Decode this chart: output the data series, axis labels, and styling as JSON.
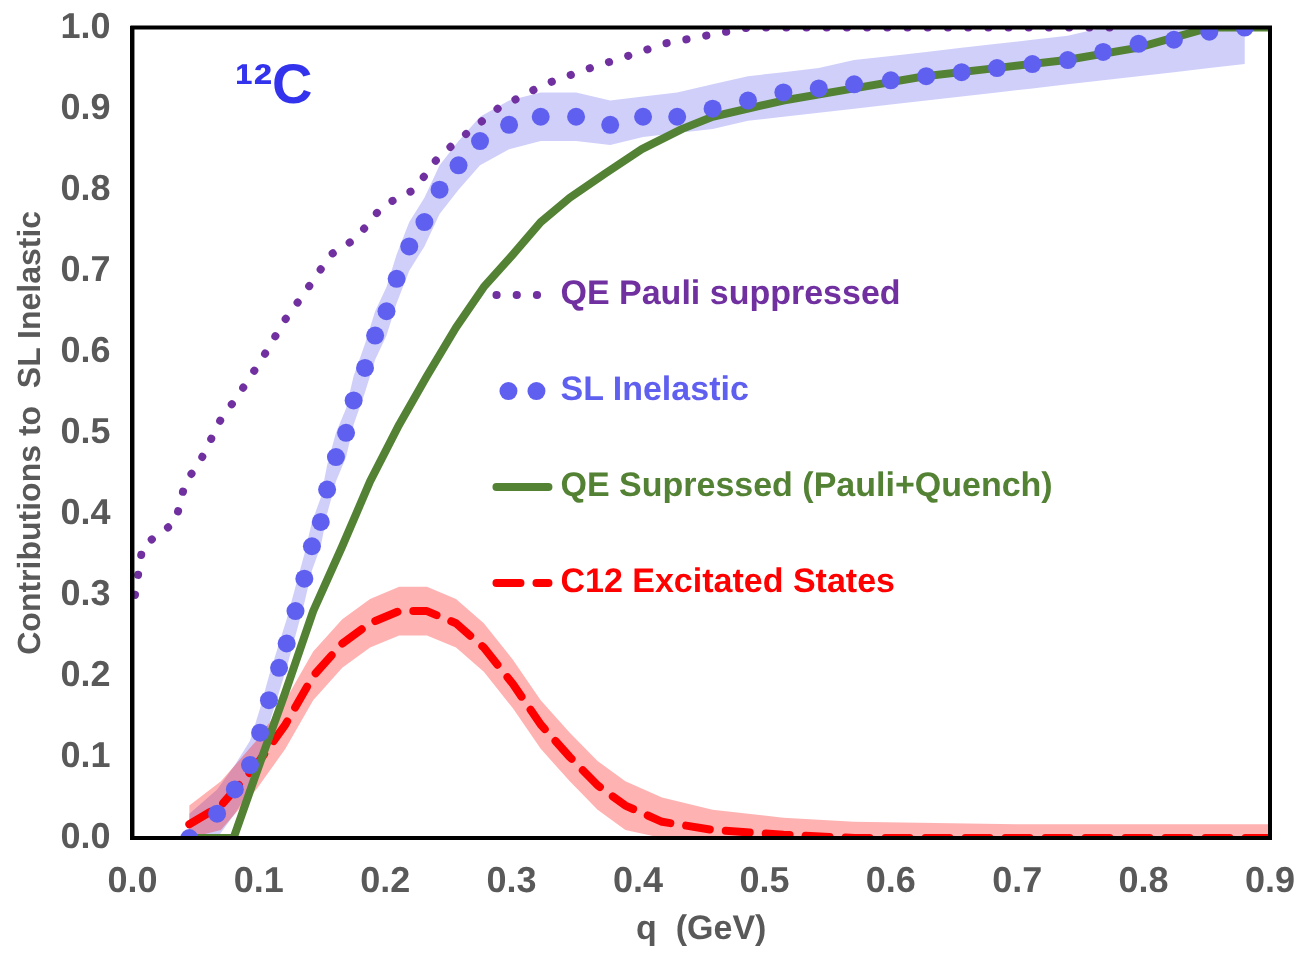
{
  "chart_data": {
    "type": "line",
    "xlabel": "q  (GeV)",
    "ylabel": "Contributions to  SL Inelastic",
    "annotations": [
      "¹²C"
    ],
    "xlim": [
      0,
      0.9
    ],
    "ylim": [
      0,
      1
    ],
    "xticks": [
      {
        "value": 0,
        "label": "0.0"
      },
      {
        "value": 0.1,
        "label": "0.1"
      },
      {
        "value": 0.2,
        "label": "0.2"
      },
      {
        "value": 0.3,
        "label": "0.3"
      },
      {
        "value": 0.4,
        "label": "0.4"
      },
      {
        "value": 0.5,
        "label": "0.5"
      },
      {
        "value": 0.6,
        "label": "0.6"
      },
      {
        "value": 0.7,
        "label": "0.7"
      },
      {
        "value": 0.8,
        "label": "0.8"
      },
      {
        "value": 0.9,
        "label": "0.9"
      }
    ],
    "yticks": [
      {
        "value": 0,
        "label": "0.0"
      },
      {
        "value": 0.1,
        "label": "0.1"
      },
      {
        "value": 0.2,
        "label": "0.2"
      },
      {
        "value": 0.3,
        "label": "0.3"
      },
      {
        "value": 0.4,
        "label": "0.4"
      },
      {
        "value": 0.5,
        "label": "0.5"
      },
      {
        "value": 0.6,
        "label": "0.6"
      },
      {
        "value": 0.7,
        "label": "0.7"
      },
      {
        "value": 0.8,
        "label": "0.8"
      },
      {
        "value": 0.9,
        "label": "0.9"
      },
      {
        "value": 1,
        "label": "1.0"
      }
    ],
    "grid": false,
    "legend": "right",
    "series": [
      {
        "name": "QE Pauli suppressed",
        "color": "#7030a0",
        "line_style": "dotted",
        "marker": "none",
        "x": [
          0.002,
          0.008,
          0.034,
          0.042,
          0.052,
          0.071,
          0.081,
          0.102,
          0.121,
          0.135,
          0.157,
          0.177,
          0.198,
          0.223,
          0.242,
          0.257,
          0.289,
          0.326,
          0.362,
          0.402,
          0.42,
          0.487,
          0.57,
          0.78
        ],
        "values": [
          0.3,
          0.36,
          0.39,
          0.44,
          0.46,
          0.52,
          0.54,
          0.59,
          0.64,
          0.67,
          0.72,
          0.74,
          0.78,
          0.8,
          0.84,
          0.86,
          0.9,
          0.93,
          0.95,
          0.97,
          0.98,
          1.0,
          1.0,
          1.0
        ]
      },
      {
        "name": "SL Inelastic",
        "color": "#6060f0",
        "type": "scatter",
        "marker": "circle",
        "x": [
          0.045,
          0.067,
          0.081,
          0.093,
          0.101,
          0.108,
          0.116,
          0.122,
          0.129,
          0.136,
          0.142,
          0.149,
          0.154,
          0.161,
          0.169,
          0.175,
          0.184,
          0.192,
          0.201,
          0.209,
          0.219,
          0.231,
          0.243,
          0.258,
          0.275,
          0.298,
          0.323,
          0.351,
          0.378,
          0.404,
          0.431,
          0.459,
          0.487,
          0.515,
          0.543,
          0.571,
          0.6,
          0.628,
          0.656,
          0.684,
          0.712,
          0.74,
          0.768,
          0.796,
          0.824,
          0.852,
          0.88
        ],
        "values": [
          0.0,
          0.03,
          0.06,
          0.09,
          0.13,
          0.17,
          0.21,
          0.24,
          0.28,
          0.32,
          0.36,
          0.39,
          0.43,
          0.47,
          0.5,
          0.54,
          0.58,
          0.62,
          0.65,
          0.69,
          0.73,
          0.76,
          0.8,
          0.83,
          0.86,
          0.88,
          0.89,
          0.89,
          0.88,
          0.89,
          0.89,
          0.9,
          0.91,
          0.92,
          0.925,
          0.93,
          0.935,
          0.94,
          0.945,
          0.95,
          0.955,
          0.96,
          0.97,
          0.98,
          0.985,
          0.995,
          1.0
        ],
        "lower": [
          0.0,
          0.0,
          0.03,
          0.06,
          0.1,
          0.14,
          0.18,
          0.21,
          0.25,
          0.29,
          0.33,
          0.36,
          0.4,
          0.44,
          0.47,
          0.51,
          0.55,
          0.59,
          0.62,
          0.66,
          0.7,
          0.73,
          0.77,
          0.8,
          0.83,
          0.85,
          0.86,
          0.86,
          0.855,
          0.865,
          0.87,
          0.875,
          0.885,
          0.89,
          0.895,
          0.9,
          0.905,
          0.91,
          0.915,
          0.92,
          0.925,
          0.93,
          0.935,
          0.94,
          0.945,
          0.95,
          0.955
        ],
        "upper": [
          0.03,
          0.06,
          0.09,
          0.12,
          0.16,
          0.2,
          0.24,
          0.27,
          0.31,
          0.35,
          0.39,
          0.42,
          0.46,
          0.5,
          0.53,
          0.57,
          0.61,
          0.65,
          0.68,
          0.72,
          0.76,
          0.79,
          0.83,
          0.86,
          0.89,
          0.91,
          0.92,
          0.92,
          0.91,
          0.915,
          0.92,
          0.93,
          0.94,
          0.945,
          0.95,
          0.96,
          0.965,
          0.97,
          0.975,
          0.98,
          0.985,
          0.99,
          1.0,
          1.0,
          1.0,
          1.0,
          1.0
        ]
      },
      {
        "name": "QE Supressed (Pauli+Quench)",
        "color": "#548235",
        "line_style": "solid",
        "marker": "none",
        "x": [
          0.045,
          0.08,
          0.098,
          0.121,
          0.143,
          0.166,
          0.188,
          0.211,
          0.233,
          0.256,
          0.278,
          0.301,
          0.323,
          0.346,
          0.374,
          0.403,
          0.435,
          0.459,
          0.515,
          0.571,
          0.627,
          0.683,
          0.739,
          0.795,
          0.852,
          0.9
        ],
        "values": [
          0.0,
          0.0,
          0.08,
          0.18,
          0.28,
          0.36,
          0.44,
          0.51,
          0.57,
          0.63,
          0.68,
          0.72,
          0.76,
          0.79,
          0.82,
          0.85,
          0.875,
          0.89,
          0.91,
          0.925,
          0.94,
          0.95,
          0.96,
          0.975,
          1.0,
          1.0
        ]
      },
      {
        "name": "C12 Excitated States",
        "color": "#ff0000",
        "line_style": "dashed",
        "marker": "none",
        "x": [
          0.045,
          0.07,
          0.098,
          0.121,
          0.143,
          0.166,
          0.188,
          0.211,
          0.233,
          0.256,
          0.278,
          0.301,
          0.323,
          0.346,
          0.368,
          0.39,
          0.419,
          0.459,
          0.515,
          0.571,
          0.7,
          0.9
        ],
        "values": [
          0.017,
          0.04,
          0.09,
          0.14,
          0.2,
          0.24,
          0.265,
          0.28,
          0.28,
          0.265,
          0.235,
          0.19,
          0.14,
          0.1,
          0.065,
          0.04,
          0.02,
          0.01,
          0.004,
          0.0,
          0.0,
          0.0
        ],
        "lower": [
          0.0,
          0.01,
          0.06,
          0.11,
          0.17,
          0.21,
          0.235,
          0.25,
          0.25,
          0.235,
          0.205,
          0.16,
          0.11,
          0.07,
          0.035,
          0.01,
          0.0,
          0.0,
          0.0,
          0.0,
          0.0,
          0.0
        ],
        "upper": [
          0.04,
          0.07,
          0.12,
          0.17,
          0.23,
          0.27,
          0.295,
          0.31,
          0.31,
          0.295,
          0.265,
          0.22,
          0.17,
          0.13,
          0.095,
          0.07,
          0.05,
          0.035,
          0.025,
          0.02,
          0.017,
          0.017
        ]
      }
    ]
  }
}
